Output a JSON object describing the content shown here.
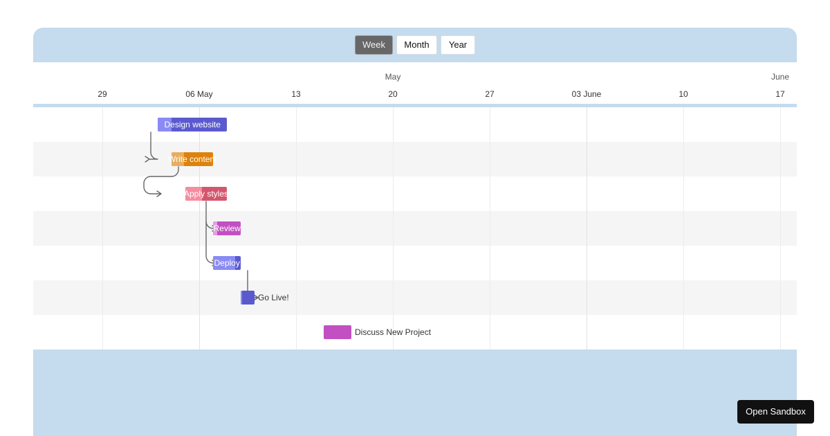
{
  "toolbar": {
    "views": [
      {
        "label": "Week",
        "active": true
      },
      {
        "label": "Month",
        "active": false
      },
      {
        "label": "Year",
        "active": false
      }
    ]
  },
  "timeline": {
    "months": [
      "May",
      "June"
    ],
    "days": [
      "29",
      "06 May",
      "13",
      "20",
      "27",
      "03 June",
      "10",
      "17"
    ]
  },
  "tasks": [
    {
      "name": "Design website",
      "start": "2024-05-03",
      "end": "2024-05-07",
      "progress": 0.2,
      "color": "#5a5ace",
      "progress_color": "#8a8af5",
      "label_inside": true
    },
    {
      "name": "Write content",
      "start": "2024-05-04",
      "end": "2024-05-06",
      "progress": 0.3,
      "color": "#dd820b",
      "progress_color": "#e9ad5f",
      "label_inside": true
    },
    {
      "name": "Apply styles",
      "start": "2024-05-05",
      "end": "2024-05-07",
      "progress": 0.4,
      "color": "#d4566c",
      "progress_color": "#f58ca0",
      "label_inside": true
    },
    {
      "name": "Review",
      "start": "2024-05-07",
      "end": "2024-05-08",
      "progress": 0.15,
      "color": "#c250c2",
      "progress_color": "#e79ce7",
      "label_inside": true
    },
    {
      "name": "Deploy",
      "start": "2024-05-07",
      "end": "2024-05-08",
      "progress": 0.8,
      "color": "#5a5ace",
      "progress_color": "#8a8af5",
      "label_inside": true
    },
    {
      "name": "Go Live!",
      "start": "2024-05-09",
      "end": "2024-05-09",
      "progress": 0.05,
      "color": "#5a5ace",
      "progress_color": "#8a8af5",
      "label_inside": false
    },
    {
      "name": "Discuss New Project",
      "start": "2024-05-15",
      "end": "2024-05-16",
      "progress": 0,
      "color": "#c250c2",
      "progress_color": "#e79ce7",
      "label_inside": false
    }
  ],
  "dependencies": [
    {
      "from": "Design website",
      "to": "Write content"
    },
    {
      "from": "Write content",
      "to": "Apply styles"
    },
    {
      "from": "Apply styles",
      "to": "Review"
    },
    {
      "from": "Apply styles",
      "to": "Deploy"
    },
    {
      "from": "Deploy",
      "to": "Go Live!"
    }
  ],
  "sandbox_button": {
    "label": "Open Sandbox"
  }
}
